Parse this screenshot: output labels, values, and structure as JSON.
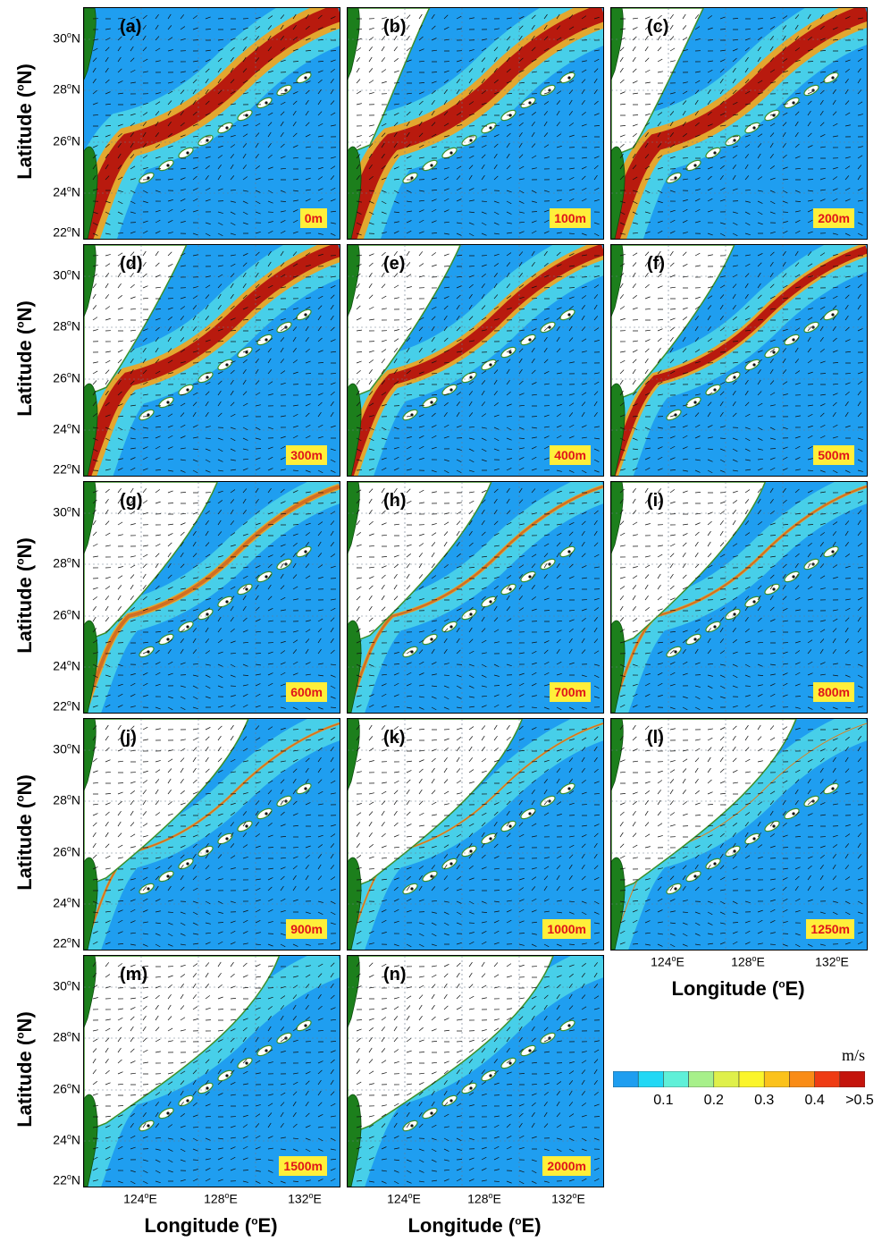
{
  "panels": [
    {
      "id": "(a)",
      "depth": "0m"
    },
    {
      "id": "(b)",
      "depth": "100m"
    },
    {
      "id": "(c)",
      "depth": "200m"
    },
    {
      "id": "(d)",
      "depth": "300m"
    },
    {
      "id": "(e)",
      "depth": "400m"
    },
    {
      "id": "(f)",
      "depth": "500m"
    },
    {
      "id": "(g)",
      "depth": "600m"
    },
    {
      "id": "(h)",
      "depth": "700m"
    },
    {
      "id": "(i)",
      "depth": "800m"
    },
    {
      "id": "(j)",
      "depth": "900m"
    },
    {
      "id": "(k)",
      "depth": "1000m"
    },
    {
      "id": "(l)",
      "depth": "1250m"
    },
    {
      "id": "(m)",
      "depth": "1500m"
    },
    {
      "id": "(n)",
      "depth": "2000m"
    }
  ],
  "axes": {
    "ylabel_main": "Latitude (",
    "ylabel_unit": "N)",
    "xlabel_main": "Longitude (",
    "xlabel_unit": "E)",
    "lat_ticks": [
      "30",
      "28",
      "26",
      "24",
      "22"
    ],
    "lat_suffix": "N",
    "lon_ticks": [
      "124",
      "128",
      "132"
    ],
    "lon_suffix": "E",
    "degree": "o"
  },
  "colorbar": {
    "unit": "m/s",
    "ticks": [
      "0.1",
      "0.2",
      "0.3",
      "0.4",
      ">0.5"
    ],
    "colors": [
      "#1f9ef0",
      "#22d8f5",
      "#5ff0d8",
      "#a7f08a",
      "#dff04a",
      "#fbf52a",
      "#fbc21b",
      "#f98c16",
      "#ef3c14",
      "#c4140c"
    ]
  },
  "style": {
    "ocean_low": "#1f9ef0",
    "ocean_mid": "#4fd7e8",
    "land": "#1c7f1c",
    "contour": "#3c8f2a",
    "jet_core": "#b81a0e",
    "jet_edge": "#f4a21b",
    "label_box": "#ffef3a",
    "label_text": "#e0141a"
  }
}
